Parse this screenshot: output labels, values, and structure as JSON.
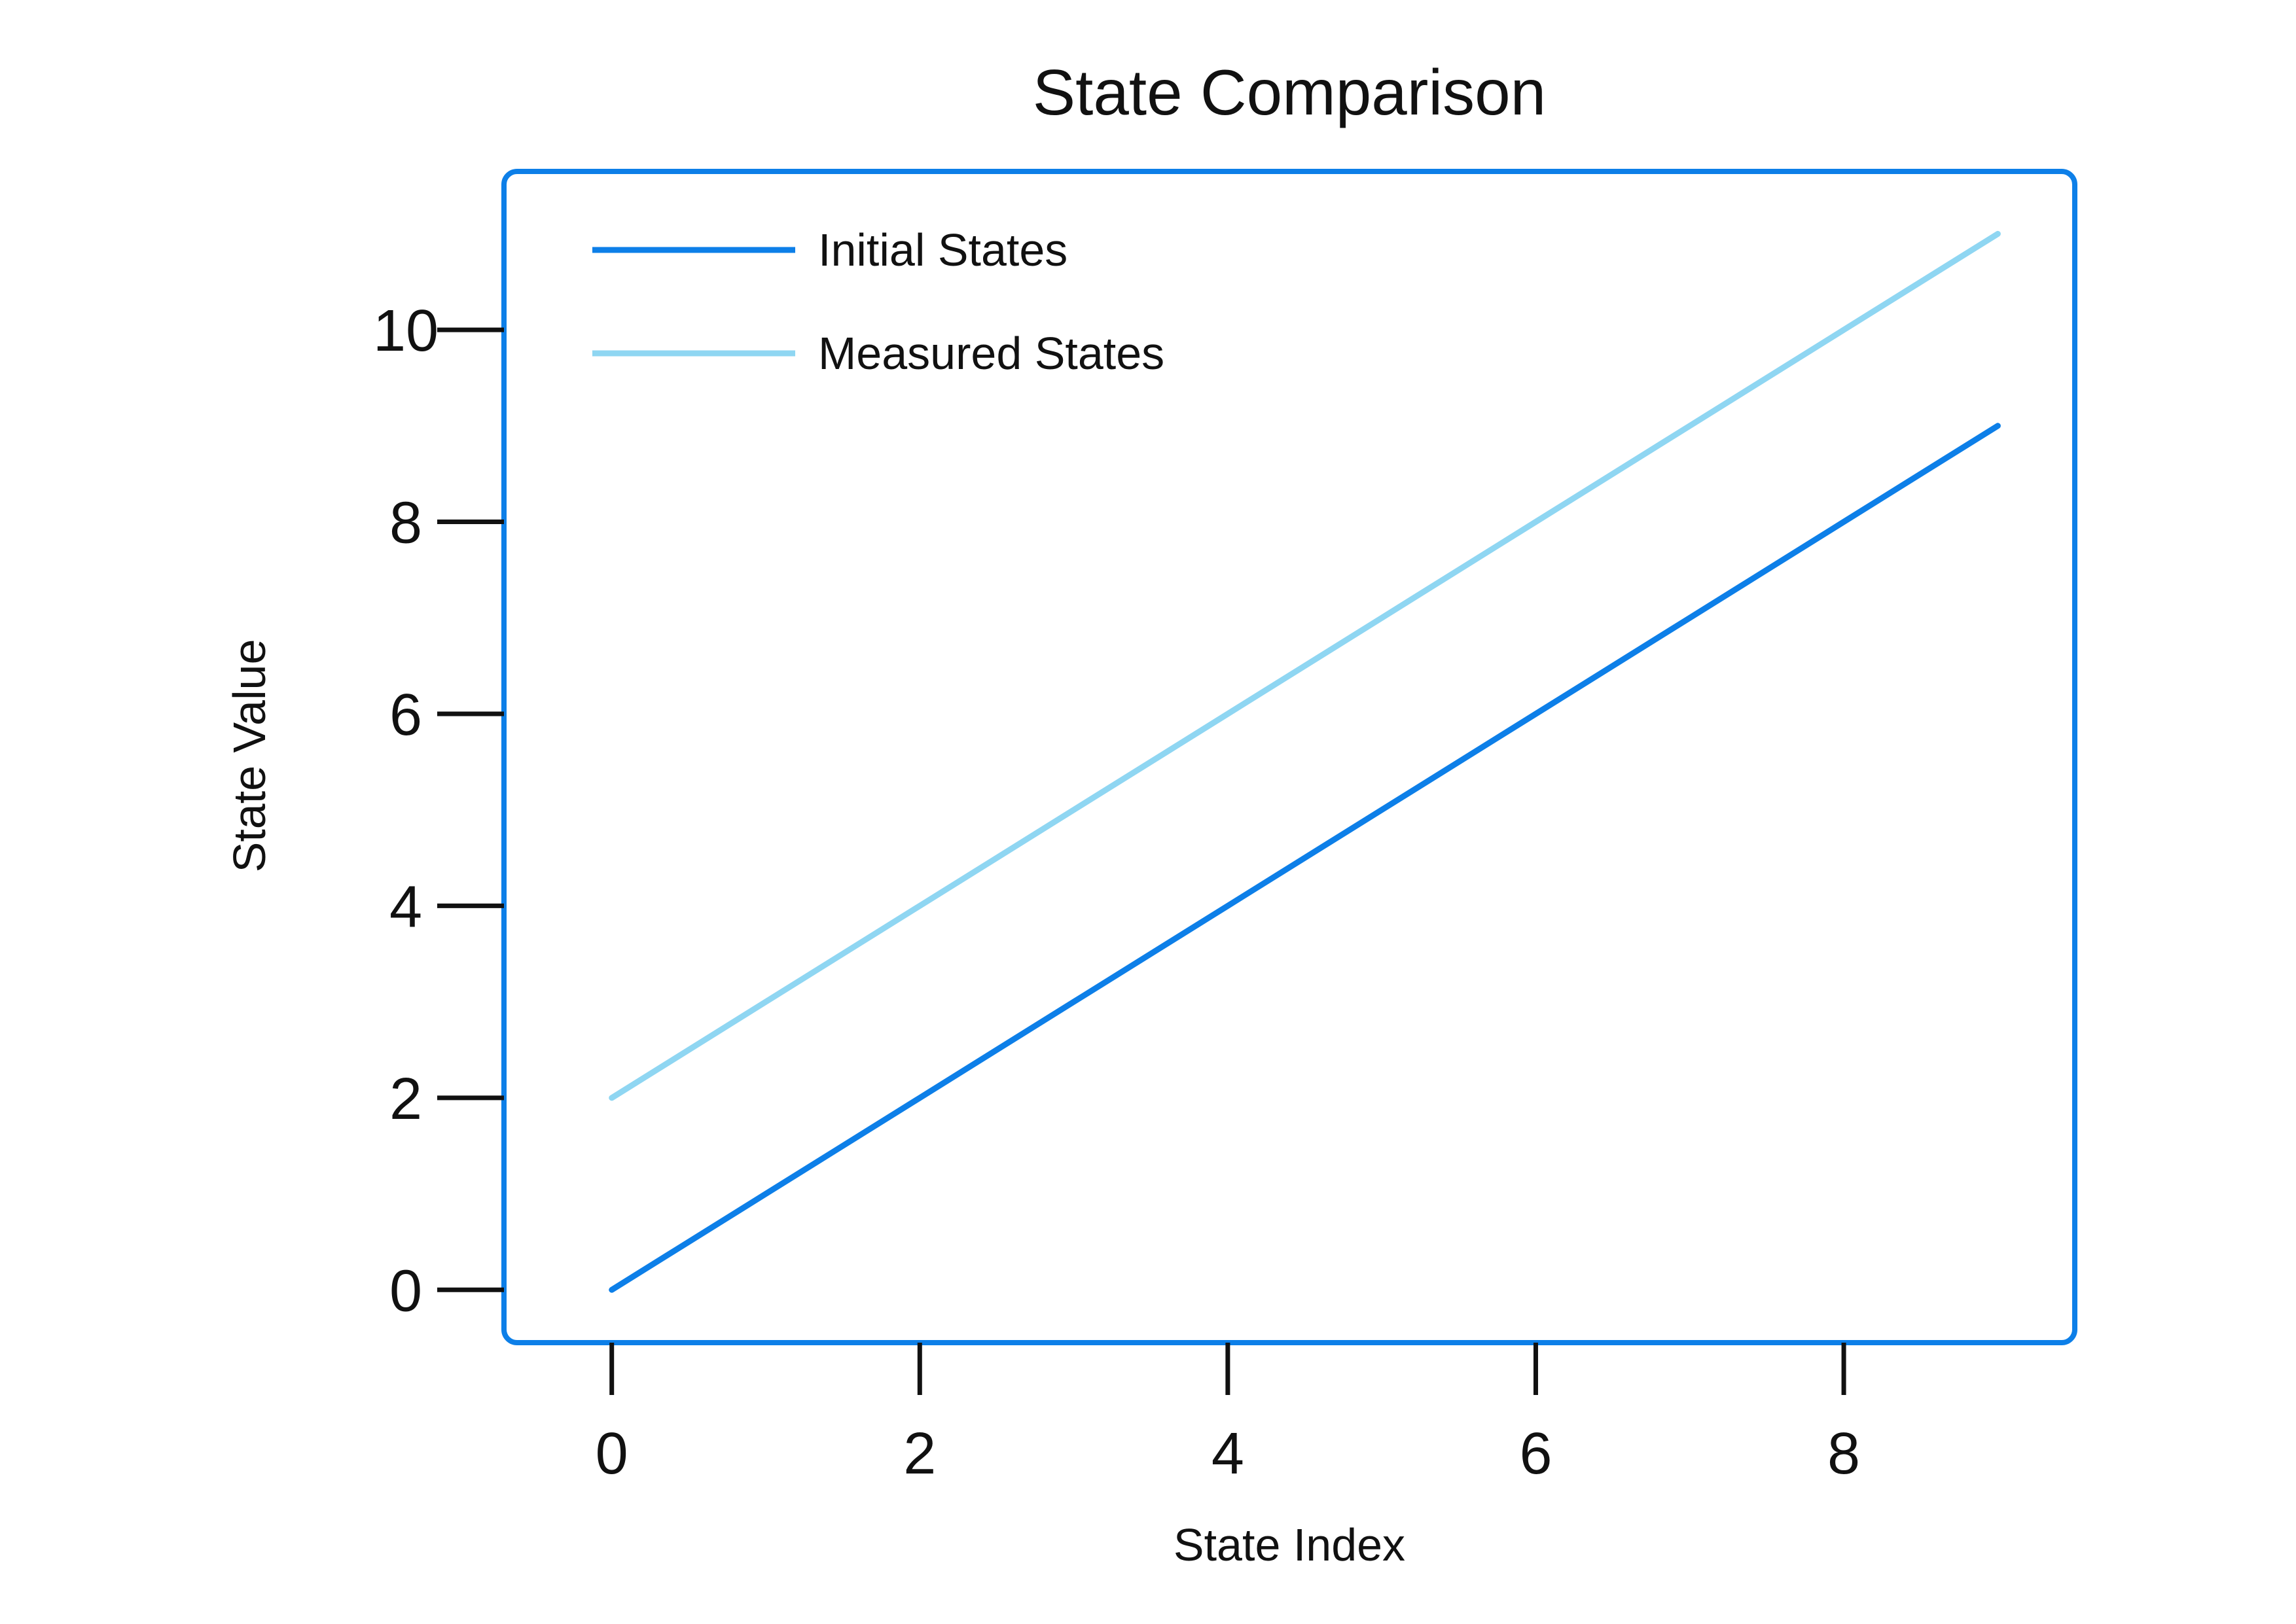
{
  "chart_data": {
    "type": "line",
    "title": "State Comparison",
    "xlabel": "State Index",
    "ylabel": "State Value",
    "xlim": [
      -0.7,
      9.5
    ],
    "ylim": [
      -0.55,
      11.65
    ],
    "xticks": [
      0,
      2,
      4,
      6,
      8
    ],
    "yticks": [
      0,
      2,
      4,
      6,
      8,
      10
    ],
    "grid": false,
    "legend_position": "top-left",
    "frame_color": "#0d7fe8",
    "x": [
      0,
      1,
      2,
      3,
      4,
      5,
      6,
      7,
      8,
      9
    ],
    "series": [
      {
        "name": "Initial States",
        "color": "#0d7fe8",
        "values": [
          0,
          1,
          2,
          3,
          4,
          5,
          6,
          7,
          8,
          9
        ]
      },
      {
        "name": "Measured States",
        "color": "#8fd6f2",
        "values": [
          2,
          3,
          4,
          5,
          6,
          7,
          8,
          9,
          10,
          11
        ]
      }
    ]
  }
}
